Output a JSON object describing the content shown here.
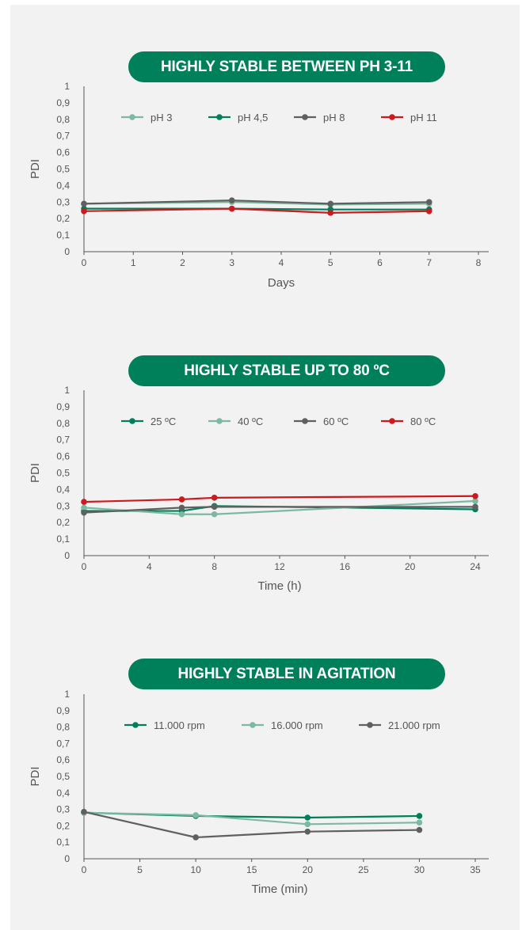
{
  "colors": {
    "banner": "#00805a",
    "panel": "#f2f2f2",
    "axis": "#555555"
  },
  "chart_data": [
    {
      "type": "line",
      "title": "HIGHLY STABLE BETWEEN PH 3-11",
      "xlabel": "Days",
      "ylabel": "PDI",
      "xlim": [
        0,
        8
      ],
      "ylim": [
        0,
        1
      ],
      "xticks": [
        0,
        1,
        2,
        3,
        4,
        5,
        6,
        7,
        8
      ],
      "yticks": [
        "0",
        "0,1",
        "0,2",
        "0,3",
        "0,4",
        "0,5",
        "0,6",
        "0,7",
        "0,8",
        "0,9",
        "1"
      ],
      "legend_position": "top",
      "series": [
        {
          "name": "pH 3",
          "color": "#7db9a2",
          "x": [
            0,
            3,
            5,
            7
          ],
          "y": [
            0.29,
            0.3,
            0.285,
            0.29
          ]
        },
        {
          "name": "pH 4,5",
          "color": "#00805a",
          "x": [
            0,
            3,
            5,
            7
          ],
          "y": [
            0.26,
            0.26,
            0.255,
            0.255
          ]
        },
        {
          "name": "pH 8",
          "color": "#5f6062",
          "x": [
            0,
            3,
            5,
            7
          ],
          "y": [
            0.29,
            0.31,
            0.29,
            0.3
          ]
        },
        {
          "name": "pH 11",
          "color": "#cc1a1f",
          "x": [
            0,
            3,
            5,
            7
          ],
          "y": [
            0.245,
            0.26,
            0.235,
            0.245
          ]
        }
      ]
    },
    {
      "type": "line",
      "title": "HIGHLY STABLE UP TO 80 ºC",
      "xlabel": "Time (h)",
      "ylabel": "PDI",
      "xlim": [
        0,
        24
      ],
      "ylim": [
        0,
        1
      ],
      "xticks": [
        0,
        4,
        8,
        12,
        16,
        20,
        24
      ],
      "yticks": [
        "0",
        "0,1",
        "0,2",
        "0,3",
        "0,4",
        "0,5",
        "0,6",
        "0,7",
        "0,8",
        "0,9",
        "1"
      ],
      "legend_position": "top",
      "series": [
        {
          "name": "25 ºC",
          "color": "#00805a",
          "x": [
            0,
            6,
            8,
            24
          ],
          "y": [
            0.27,
            0.27,
            0.3,
            0.28
          ]
        },
        {
          "name": "40 ºC",
          "color": "#7db9a2",
          "x": [
            0,
            6,
            8,
            24
          ],
          "y": [
            0.29,
            0.25,
            0.25,
            0.33
          ]
        },
        {
          "name": "60 ºC",
          "color": "#5f6062",
          "x": [
            0,
            6,
            8,
            24
          ],
          "y": [
            0.26,
            0.29,
            0.295,
            0.295
          ]
        },
        {
          "name": "80 ºC",
          "color": "#cc1a1f",
          "x": [
            0,
            6,
            8,
            24
          ],
          "y": [
            0.325,
            0.34,
            0.35,
            0.36
          ]
        }
      ]
    },
    {
      "type": "line",
      "title": "HIGHLY STABLE IN AGITATION",
      "xlabel": "Time (min)",
      "ylabel": "PDI",
      "xlim": [
        0,
        35
      ],
      "ylim": [
        0,
        1
      ],
      "xticks": [
        0,
        5,
        10,
        15,
        20,
        25,
        30,
        35
      ],
      "yticks": [
        "0",
        "0,1",
        "0,2",
        "0,3",
        "0,4",
        "0,5",
        "0,6",
        "0,7",
        "0,8",
        "0,9",
        "1"
      ],
      "legend_position": "top",
      "series": [
        {
          "name": "11.000 rpm",
          "color": "#00805a",
          "x": [
            0,
            10,
            20,
            30
          ],
          "y": [
            0.28,
            0.26,
            0.25,
            0.26
          ]
        },
        {
          "name": "16.000 rpm",
          "color": "#7db9a2",
          "x": [
            0,
            10,
            20,
            30
          ],
          "y": [
            0.28,
            0.265,
            0.21,
            0.22
          ]
        },
        {
          "name": "21.000 rpm",
          "color": "#5f6062",
          "x": [
            0,
            10,
            20,
            30
          ],
          "y": [
            0.285,
            0.13,
            0.165,
            0.175
          ]
        }
      ]
    }
  ]
}
